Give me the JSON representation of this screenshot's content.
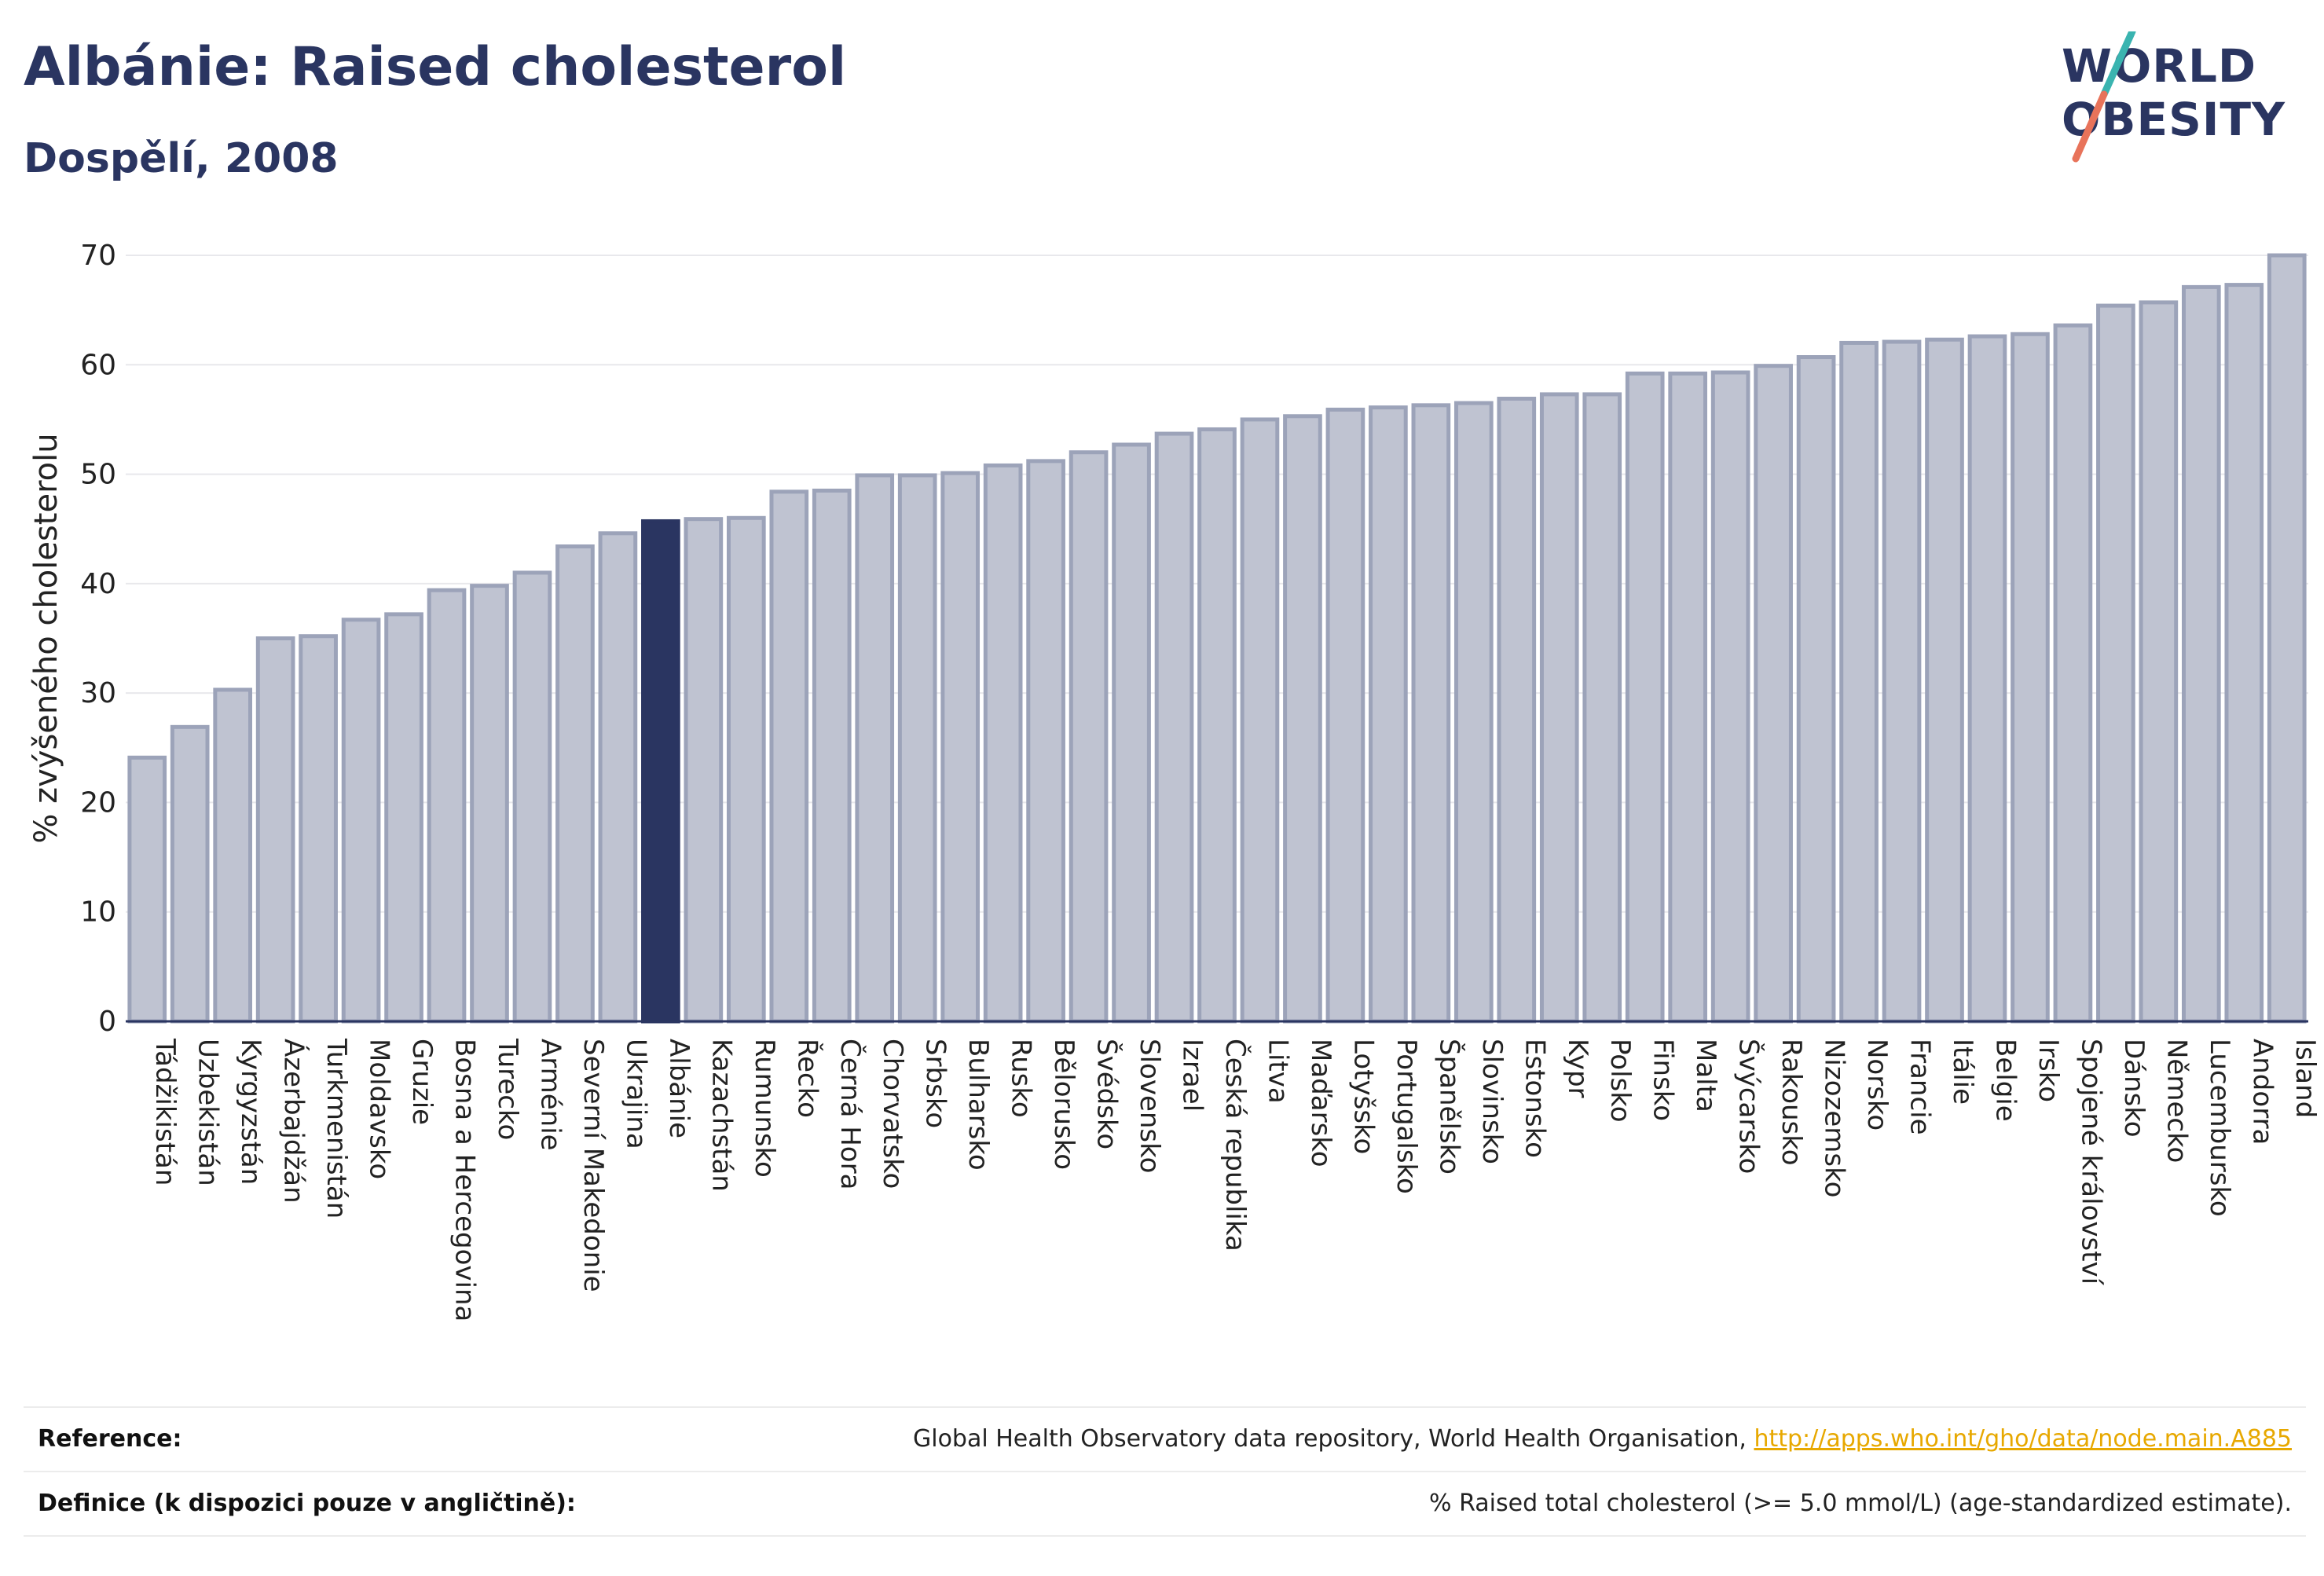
{
  "header": {
    "title": "Albánie: Raised cholesterol",
    "subtitle": "Dospělí, 2008"
  },
  "logo": {
    "line1": "WORLD",
    "line2": "OBESITY",
    "slash_colors": [
      "#3ab4b0",
      "#e8735a"
    ]
  },
  "colors": {
    "bar": "#bfc3d1",
    "bar_stroke": "#9ca3b9",
    "highlight": "#2a3561",
    "axis_text": "#222222",
    "grid": "#e8e8ec"
  },
  "chart_data": {
    "type": "bar",
    "title": "Albánie: Raised cholesterol",
    "subtitle": "Dospělí, 2008",
    "xlabel": "",
    "ylabel": "% zvýšeného cholesterolu",
    "ylim": [
      0,
      70
    ],
    "yticks": [
      0,
      10,
      20,
      30,
      40,
      50,
      60,
      70
    ],
    "grid": true,
    "highlight_category": "Albánie",
    "categories": [
      "Tádžikistán",
      "Uzbekistán",
      "Kyrgyzstán",
      "Ázerbajdžán",
      "Turkmenistán",
      "Moldavsko",
      "Gruzie",
      "Bosna a Hercegovina",
      "Turecko",
      "Arménie",
      "Severní Makedonie",
      "Ukrajina",
      "Albánie",
      "Kazachstán",
      "Rumunsko",
      "Řecko",
      "Černá Hora",
      "Chorvatsko",
      "Srbsko",
      "Bulharsko",
      "Rusko",
      "Bělorusko",
      "Švédsko",
      "Slovensko",
      "Izrael",
      "Česká republika",
      "Litva",
      "Maďarsko",
      "Lotyšsko",
      "Portugalsko",
      "Španělsko",
      "Slovinsko",
      "Estonsko",
      "Kypr",
      "Polsko",
      "Finsko",
      "Malta",
      "Švýcarsko",
      "Rakousko",
      "Nizozemsko",
      "Norsko",
      "Francie",
      "Itálie",
      "Belgie",
      "Irsko",
      "Spojené království",
      "Dánsko",
      "Německo",
      "Lucembursko",
      "Andorra",
      "Island"
    ],
    "values": [
      24.1,
      26.9,
      30.3,
      35.0,
      35.2,
      36.7,
      37.2,
      39.4,
      39.8,
      41.0,
      43.4,
      44.6,
      45.7,
      45.9,
      46.0,
      48.4,
      48.5,
      49.9,
      49.9,
      50.1,
      50.8,
      51.2,
      52.0,
      52.7,
      53.7,
      54.1,
      55.0,
      55.3,
      55.9,
      56.1,
      56.3,
      56.5,
      56.9,
      57.3,
      57.3,
      59.2,
      59.2,
      59.3,
      59.9,
      60.7,
      62.0,
      62.1,
      62.3,
      62.6,
      62.8,
      63.6,
      65.4,
      65.7,
      67.1,
      67.3,
      70.0
    ]
  },
  "footer": {
    "reference_label": "Reference:",
    "reference_text": "Global Health Observatory data repository, World Health Organisation,",
    "reference_link": "http://apps.who.int/gho/data/node.main.A885",
    "definition_label": "Definice (k dispozici pouze v angličtině):",
    "definition_text": "% Raised total cholesterol (>= 5.0 mmol/L) (age-standardized estimate)."
  }
}
